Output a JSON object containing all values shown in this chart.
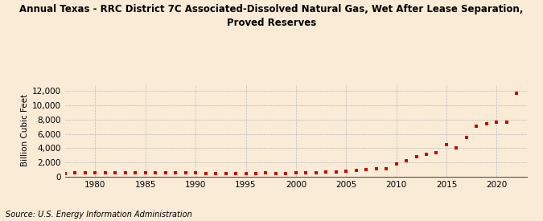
{
  "title": "Annual Texas - RRC District 7C Associated-Dissolved Natural Gas, Wet After Lease Separation,\nProved Reserves",
  "ylabel": "Billion Cubic Feet",
  "source": "Source: U.S. Energy Information Administration",
  "background_color": "#faebd7",
  "plot_background_color": "#faebd7",
  "marker_color": "#cc0000",
  "grid_color": "#bbbbbb",
  "years": [
    1977,
    1978,
    1979,
    1980,
    1981,
    1982,
    1983,
    1984,
    1985,
    1986,
    1987,
    1988,
    1989,
    1990,
    1991,
    1992,
    1993,
    1994,
    1995,
    1996,
    1997,
    1998,
    1999,
    2000,
    2001,
    2002,
    2003,
    2004,
    2005,
    2006,
    2007,
    2008,
    2009,
    2010,
    2011,
    2012,
    2013,
    2014,
    2015,
    2016,
    2017,
    2018,
    2019,
    2020,
    2021,
    2022
  ],
  "values": [
    500,
    560,
    580,
    550,
    580,
    600,
    580,
    600,
    600,
    580,
    560,
    580,
    570,
    520,
    490,
    480,
    470,
    460,
    450,
    500,
    520,
    480,
    490,
    510,
    560,
    580,
    620,
    720,
    820,
    900,
    1000,
    1100,
    1150,
    1800,
    2200,
    2800,
    3100,
    3400,
    4500,
    4100,
    5500,
    7100,
    7400,
    7700,
    7600,
    11700
  ],
  "ylim": [
    0,
    13000
  ],
  "xlim": [
    1977,
    2023
  ],
  "yticks": [
    0,
    2000,
    4000,
    6000,
    8000,
    10000,
    12000
  ],
  "ytick_labels": [
    "0",
    "2,000",
    "4,000",
    "6,000",
    "8,000",
    "10,000",
    "12,000"
  ],
  "xticks": [
    1980,
    1985,
    1990,
    1995,
    2000,
    2005,
    2010,
    2015,
    2020
  ],
  "title_fontsize": 8.5,
  "axis_fontsize": 7.5,
  "source_fontsize": 7
}
